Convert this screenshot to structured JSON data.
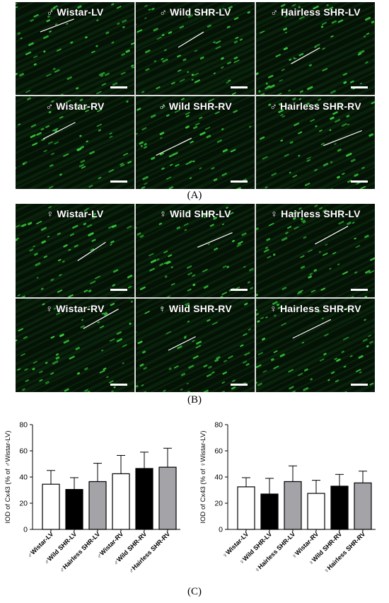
{
  "panels": {
    "A": {
      "letter": "(A)",
      "tiles": [
        {
          "label": "♂ Wistar-LV"
        },
        {
          "label": "♂ Wild SHR-LV"
        },
        {
          "label": "♂ Hairless SHR-LV"
        },
        {
          "label": "♂ Wistar-RV"
        },
        {
          "label": "♂ Wild SHR-RV"
        },
        {
          "label": "♂ Hairless SHR-RV"
        }
      ]
    },
    "B": {
      "letter": "(B)",
      "tiles": [
        {
          "label": "♀ Wistar-LV"
        },
        {
          "label": "♀ Wild SHR-LV"
        },
        {
          "label": "♀ Hairless SHR-LV"
        },
        {
          "label": "♀ Wistar-RV"
        },
        {
          "label": "♀ Wild SHR-RV"
        },
        {
          "label": "♀ Hairless SHR-RV"
        }
      ]
    },
    "C": {
      "letter": "(C)"
    }
  },
  "colors": {
    "fluorescence": "#35c93a",
    "tissue": "#0b2a0e",
    "bar_white": "#ffffff",
    "bar_black": "#000000",
    "bar_gray": "#a4a4a8"
  },
  "chart_data": [
    {
      "type": "bar",
      "ylabel": "IOD of Cx43 (% of ♂Wistar-LV)",
      "ylim": [
        0,
        80
      ],
      "yticks": [
        0,
        20,
        40,
        60,
        80
      ],
      "categories": [
        "♂Wistar-LV",
        "♂Wild SHR-LV",
        "♂Hairless SHR-LV",
        "♂Wistar-RV",
        "♂Wild SHR-RV",
        "♂Hairless SHR-RV"
      ],
      "values": [
        34.5,
        30.5,
        36.5,
        42.5,
        46.5,
        47.5
      ],
      "errors": [
        10.5,
        9.0,
        14.0,
        14.0,
        12.5,
        14.5
      ],
      "bar_colors": [
        "#ffffff",
        "#000000",
        "#a4a4a8",
        "#ffffff",
        "#000000",
        "#a4a4a8"
      ]
    },
    {
      "type": "bar",
      "ylabel": "IOD of Cx43 (% of ♀Wistar-LV)",
      "ylim": [
        0,
        80
      ],
      "yticks": [
        0,
        20,
        40,
        60,
        80
      ],
      "categories": [
        "♀Wistar-LV",
        "♀Wild SHR-LV",
        "♀Hairless SHR-LV",
        "♀Wistar-RV",
        "♀Wild SHR-RV",
        "♀Hairless SHR-RV"
      ],
      "values": [
        32.5,
        27.0,
        36.5,
        27.5,
        33.0,
        35.5
      ],
      "errors": [
        7.0,
        12.0,
        12.0,
        10.0,
        9.0,
        9.0
      ],
      "bar_colors": [
        "#ffffff",
        "#000000",
        "#a4a4a8",
        "#ffffff",
        "#000000",
        "#a4a4a8"
      ]
    }
  ]
}
